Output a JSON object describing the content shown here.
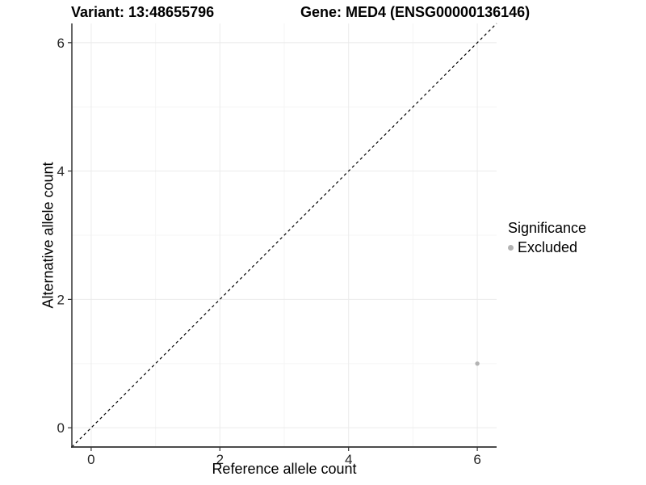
{
  "chart_data": {
    "type": "scatter",
    "title_left": "Variant: 13:48655796",
    "title_right": "Gene: MED4 (ENSG00000136146)",
    "xlabel": "Reference allele count",
    "ylabel": "Alternative allele count",
    "xlim": [
      -0.3,
      6.3
    ],
    "ylim": [
      -0.3,
      6.3
    ],
    "xticks": [
      0,
      2,
      4,
      6
    ],
    "yticks": [
      0,
      2,
      4,
      6
    ],
    "minor_xticks": [
      1,
      3,
      5
    ],
    "minor_yticks": [
      1,
      3,
      5
    ],
    "grid": true,
    "legend_position": "right",
    "reference_line": {
      "kind": "identity",
      "style": "dashed",
      "color": "#000000"
    },
    "series": [
      {
        "name": "Excluded",
        "color": "#b3b3b3",
        "points": [
          {
            "x": 6,
            "y": 1
          }
        ]
      }
    ],
    "legend": {
      "title": "Significance",
      "items": [
        {
          "label": "Excluded",
          "color": "#b3b3b3"
        }
      ]
    }
  },
  "style_colors": {
    "background": "#ffffff",
    "major_grid": "#ebebeb",
    "minor_grid": "#f5f5f5",
    "axis_line": "#333333",
    "tick_mark": "#333333",
    "tick_label": "#262626",
    "point": "#b3b3b3"
  }
}
